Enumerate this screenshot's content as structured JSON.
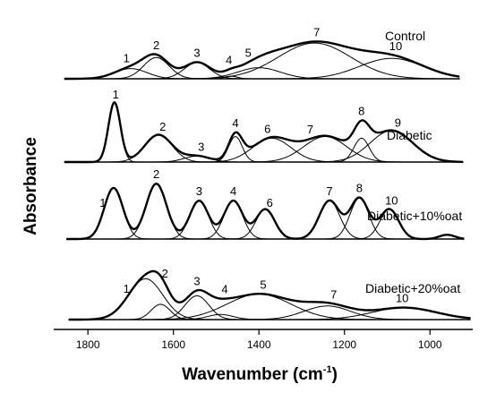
{
  "chart_data": {
    "type": "line",
    "xlabel": "Wavenumber (cm",
    "xlabel_sup": "-1",
    "xlabel_suffix": ")",
    "ylabel": "Absorbance",
    "xlim": [
      1880,
      900
    ],
    "x_reversed": true,
    "x_ticks": [
      1800,
      1600,
      1400,
      1200,
      1000
    ],
    "x_tick_labels": [
      "1800",
      "1600",
      "1400",
      "1200",
      "1000"
    ],
    "grid": false,
    "panels": [
      {
        "name": "Control",
        "baseline": 0.0,
        "peaks": [
          {
            "label": "1",
            "center": 1700,
            "height": 0.12,
            "width": 38
          },
          {
            "label": "2",
            "center": 1640,
            "height": 0.25,
            "width": 30
          },
          {
            "label": "3",
            "center": 1545,
            "height": 0.19,
            "width": 30
          },
          {
            "label": "4",
            "center": 1465,
            "height": 0.03,
            "width": 15
          },
          {
            "label": "5",
            "center": 1400,
            "height": 0.13,
            "width": 50
          },
          {
            "label": "7",
            "center": 1270,
            "height": 0.42,
            "width": 85
          },
          {
            "label": "10",
            "center": 1090,
            "height": 0.24,
            "width": 75
          }
        ],
        "peak_label_positions": [
          1710,
          1640,
          1545,
          1470,
          1425,
          1265,
          1080
        ]
      },
      {
        "name": "Diabetic",
        "baseline": 0.0,
        "peaks": [
          {
            "label": "1",
            "center": 1738,
            "height": 0.7,
            "width": 14
          },
          {
            "label": "2",
            "center": 1635,
            "height": 0.32,
            "width": 32
          },
          {
            "label": "3",
            "center": 1545,
            "height": 0.07,
            "width": 30
          },
          {
            "label": "4",
            "center": 1455,
            "height": 0.3,
            "width": 16
          },
          {
            "label": "6",
            "center": 1370,
            "height": 0.28,
            "width": 45
          },
          {
            "label": "7",
            "center": 1245,
            "height": 0.3,
            "width": 50
          },
          {
            "label": "8",
            "center": 1160,
            "height": 0.28,
            "width": 18
          },
          {
            "label": "9",
            "center": 1090,
            "height": 0.37,
            "width": 50
          }
        ],
        "peak_label_positions": [
          1735,
          1625,
          1535,
          1455,
          1380,
          1280,
          1160,
          1075
        ]
      },
      {
        "name": "Diabetic+10%oat",
        "baseline": 0.0,
        "peaks": [
          {
            "label": "1",
            "center": 1740,
            "height": 0.6,
            "width": 22
          },
          {
            "label": "2",
            "center": 1640,
            "height": 0.65,
            "width": 24
          },
          {
            "label": "3",
            "center": 1540,
            "height": 0.45,
            "width": 22
          },
          {
            "label": "4",
            "center": 1460,
            "height": 0.45,
            "width": 22
          },
          {
            "label": "6",
            "center": 1385,
            "height": 0.35,
            "width": 22
          },
          {
            "label": "7",
            "center": 1235,
            "height": 0.45,
            "width": 24
          },
          {
            "label": "8",
            "center": 1165,
            "height": 0.48,
            "width": 22
          },
          {
            "label": "10",
            "center": 1095,
            "height": 0.35,
            "width": 22
          },
          {
            "label": "",
            "center": 960,
            "height": 0.05,
            "width": 18
          }
        ],
        "peak_label_positions": [
          1765,
          1640,
          1540,
          1460,
          1375,
          1235,
          1165,
          1090
        ]
      },
      {
        "name": "Diabetic+20%oat",
        "baseline": 0.0,
        "peaks": [
          {
            "label": "1",
            "center": 1665,
            "height": 0.48,
            "width": 40
          },
          {
            "label": "2",
            "center": 1630,
            "height": 0.18,
            "width": 22
          },
          {
            "label": "3",
            "center": 1545,
            "height": 0.28,
            "width": 28
          },
          {
            "label": "4",
            "center": 1490,
            "height": 0.06,
            "width": 30
          },
          {
            "label": "5",
            "center": 1400,
            "height": 0.3,
            "width": 75
          },
          {
            "label": "7",
            "center": 1240,
            "height": 0.16,
            "width": 55
          },
          {
            "label": "10",
            "center": 1060,
            "height": 0.14,
            "width": 75
          }
        ],
        "peak_label_positions": [
          1710,
          1620,
          1545,
          1480,
          1390,
          1225,
          1065
        ]
      }
    ]
  }
}
